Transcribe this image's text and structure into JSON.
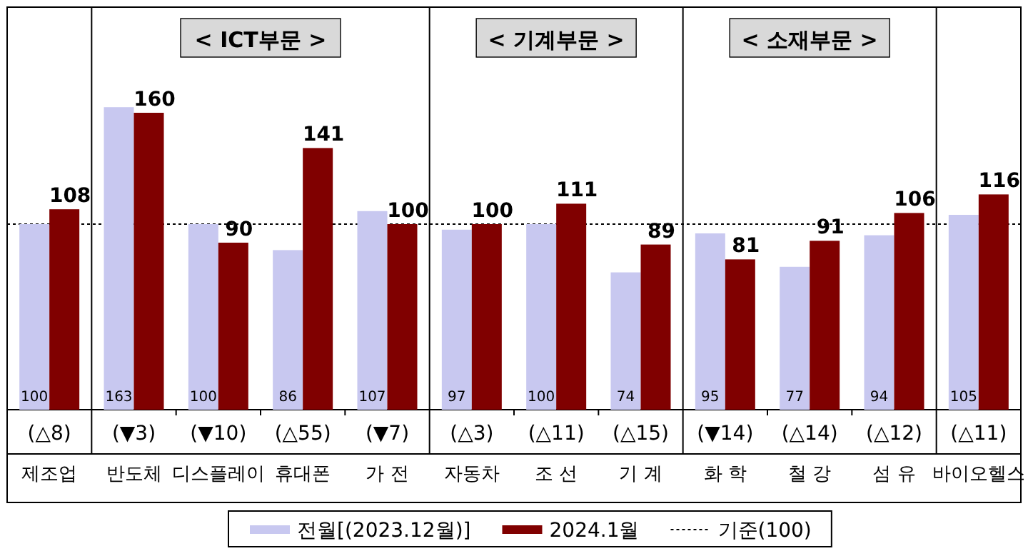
{
  "chart_data": {
    "type": "bar",
    "categories": [
      "제조업",
      "반도체",
      "디스플레이",
      "휴대폰",
      "가 전",
      "자동차",
      "조 선",
      "기 계",
      "화 학",
      "철 강",
      "섬 유",
      "바이오헬스"
    ],
    "series": [
      {
        "name": "전월[(2023.12월)]",
        "color": "#c8c8f0",
        "values": [
          100,
          163,
          100,
          86,
          107,
          97,
          100,
          74,
          95,
          77,
          94,
          105
        ]
      },
      {
        "name": "2024.1월",
        "color": "#800000",
        "values": [
          108,
          160,
          90,
          141,
          100,
          100,
          111,
          89,
          81,
          91,
          106,
          116
        ]
      }
    ],
    "data_labels": true,
    "legend": "bottom",
    "ref_lines": [
      {
        "axis": "y",
        "value": 100,
        "label": "기준(100)",
        "color": "#000000",
        "line_style": "dotted"
      }
    ],
    "annotations": [
      "< ICT부문 >",
      "< 기계부문 >",
      "< 소재부문 >",
      "(△8)",
      "(▼3)",
      "(▼10)",
      "(△55)",
      "(▼7)",
      "(△3)",
      "(△11)",
      "(△15)",
      "(▼14)",
      "(△14)",
      "(△12)",
      "(△11)"
    ]
  }
}
